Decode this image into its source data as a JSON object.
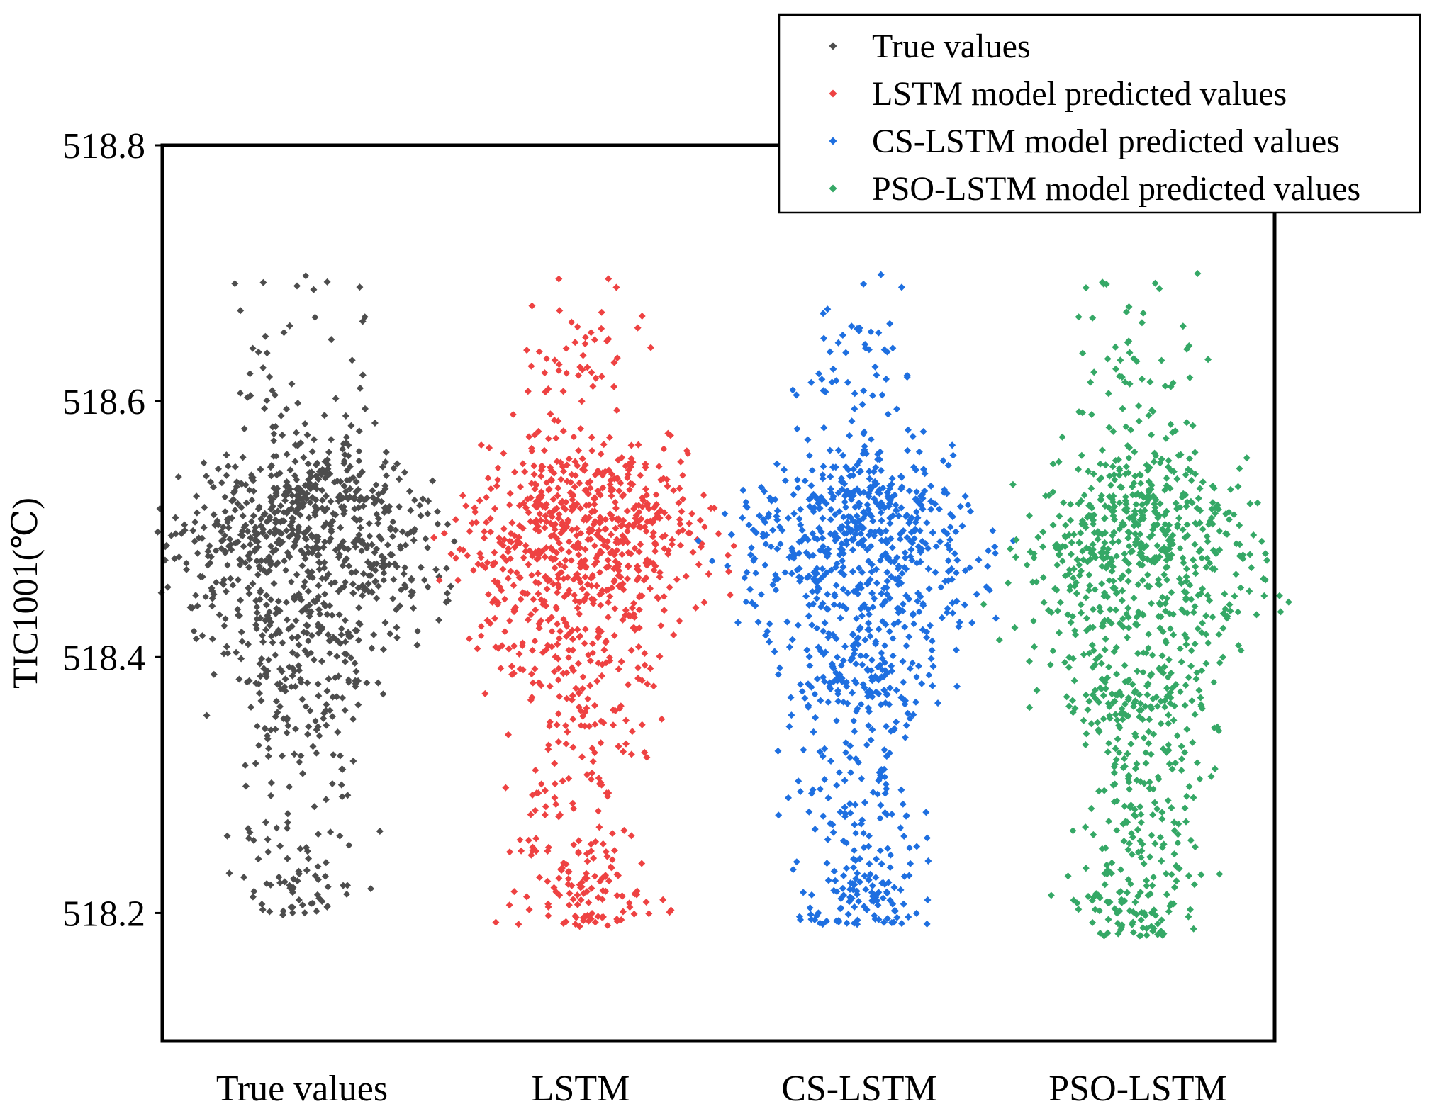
{
  "chart_data": {
    "type": "scatter",
    "title": "",
    "xlabel": "",
    "ylabel": "TIC1001(℃)",
    "ylim": [
      518.1,
      518.8
    ],
    "yticks": [
      518.2,
      518.4,
      518.6,
      518.8
    ],
    "yticklabels": [
      "518.2",
      "518.4",
      "518.6",
      "518.8"
    ],
    "categories": [
      "True values",
      "LSTM",
      "CS-LSTM",
      "PSO-LSTM"
    ],
    "grid": false,
    "legend_position": "top-right",
    "marker": "diamond",
    "series": [
      {
        "name": "True values",
        "category": "True values",
        "color": "#4d4d4d",
        "y_min": 518.197,
        "y_max": 518.7,
        "median": 518.49,
        "iqr": [
          518.43,
          518.53
        ],
        "jitter_halfwidth": 0.2,
        "n_points": 1000,
        "seed": 11,
        "clusters": [
          {
            "mean": 518.51,
            "sd": 0.03,
            "weight": 0.5
          },
          {
            "mean": 518.45,
            "sd": 0.035,
            "weight": 0.25
          },
          {
            "mean": 518.38,
            "sd": 0.03,
            "weight": 0.1
          },
          {
            "mean": 518.3,
            "sd": 0.045,
            "weight": 0.06
          },
          {
            "mean": 518.22,
            "sd": 0.02,
            "weight": 0.05
          },
          {
            "mean": 518.64,
            "sd": 0.035,
            "weight": 0.04
          }
        ]
      },
      {
        "name": "LSTM model predicted values",
        "category": "LSTM",
        "color": "#ee4242",
        "y_min": 518.188,
        "y_max": 518.7,
        "median": 518.48,
        "iqr": [
          518.43,
          518.53
        ],
        "jitter_halfwidth": 0.2,
        "n_points": 1000,
        "seed": 23,
        "clusters": [
          {
            "mean": 518.5,
            "sd": 0.035,
            "weight": 0.55
          },
          {
            "mean": 518.43,
            "sd": 0.03,
            "weight": 0.15
          },
          {
            "mean": 518.37,
            "sd": 0.035,
            "weight": 0.08
          },
          {
            "mean": 518.22,
            "sd": 0.025,
            "weight": 0.13
          },
          {
            "mean": 518.64,
            "sd": 0.03,
            "weight": 0.04
          },
          {
            "mean": 518.3,
            "sd": 0.025,
            "weight": 0.05
          }
        ]
      },
      {
        "name": "CS-LSTM model predicted values",
        "category": "CS-LSTM",
        "color": "#1e6fe0",
        "y_min": 518.191,
        "y_max": 518.7,
        "median": 518.48,
        "iqr": [
          518.41,
          518.53
        ],
        "jitter_halfwidth": 0.2,
        "n_points": 1000,
        "seed": 37,
        "clusters": [
          {
            "mean": 518.5,
            "sd": 0.035,
            "weight": 0.5
          },
          {
            "mean": 518.43,
            "sd": 0.03,
            "weight": 0.14
          },
          {
            "mean": 518.38,
            "sd": 0.025,
            "weight": 0.12
          },
          {
            "mean": 518.3,
            "sd": 0.035,
            "weight": 0.08
          },
          {
            "mean": 518.22,
            "sd": 0.025,
            "weight": 0.12
          },
          {
            "mean": 518.64,
            "sd": 0.035,
            "weight": 0.04
          }
        ]
      },
      {
        "name": "PSO-LSTM model predicted values",
        "category": "PSO-LSTM",
        "color": "#35a866",
        "y_min": 518.182,
        "y_max": 518.7,
        "median": 518.47,
        "iqr": [
          518.4,
          518.52
        ],
        "jitter_halfwidth": 0.2,
        "n_points": 1000,
        "seed": 53,
        "clusters": [
          {
            "mean": 518.5,
            "sd": 0.035,
            "weight": 0.45
          },
          {
            "mean": 518.43,
            "sd": 0.03,
            "weight": 0.15
          },
          {
            "mean": 518.37,
            "sd": 0.03,
            "weight": 0.14
          },
          {
            "mean": 518.28,
            "sd": 0.03,
            "weight": 0.08
          },
          {
            "mean": 518.21,
            "sd": 0.025,
            "weight": 0.13
          },
          {
            "mean": 518.63,
            "sd": 0.035,
            "weight": 0.05
          }
        ]
      }
    ]
  }
}
